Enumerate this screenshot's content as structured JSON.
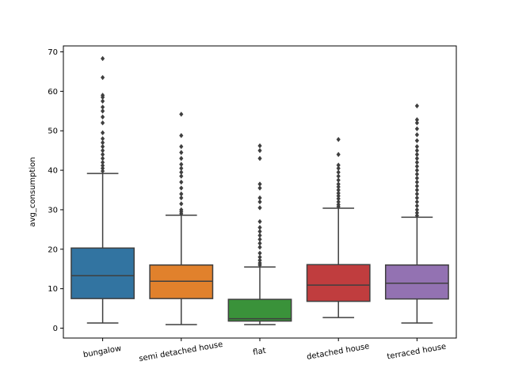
{
  "chart_data": {
    "type": "box",
    "title": "",
    "xlabel": "",
    "ylabel": "avg_consumption",
    "ylim": [
      -2.5,
      71.5
    ],
    "yticks": [
      0,
      10,
      20,
      30,
      40,
      50,
      60,
      70
    ],
    "grid": false,
    "categories": [
      "bungalow",
      "semi detached house",
      "flat",
      "detached house",
      "terraced house"
    ],
    "colors": [
      "#3274a1",
      "#e1812c",
      "#3a923a",
      "#c03d3e",
      "#9372b2"
    ],
    "boxes": [
      {
        "category": "bungalow",
        "whisker_low": 1.3,
        "q1": 7.5,
        "median": 13.3,
        "q3": 20.3,
        "whisker_high": 39.2,
        "outliers": [
          39.8,
          40.5,
          41.2,
          42.0,
          43.0,
          44.0,
          45.0,
          46.0,
          47.0,
          48.0,
          49.5,
          52.0,
          53.5,
          55.0,
          56.0,
          57.5,
          58.5,
          59.0,
          63.5,
          68.3
        ]
      },
      {
        "category": "semi detached house",
        "whisker_low": 0.9,
        "q1": 7.5,
        "median": 11.9,
        "q3": 16.0,
        "whisker_high": 28.6,
        "outliers": [
          29.0,
          29.5,
          30.0,
          31.5,
          33.0,
          34.0,
          35.5,
          37.0,
          38.5,
          39.5,
          40.5,
          41.5,
          43.0,
          44.5,
          46.0,
          48.8,
          54.2
        ]
      },
      {
        "category": "flat",
        "whisker_low": 0.9,
        "q1": 1.8,
        "median": 2.4,
        "q3": 7.3,
        "whisker_high": 15.5,
        "outliers": [
          16.0,
          16.5,
          17.2,
          18.0,
          19.0,
          20.5,
          21.5,
          22.5,
          23.5,
          24.5,
          25.5,
          27.0,
          30.5,
          32.0,
          33.0,
          35.5,
          36.5,
          43.0,
          45.0,
          46.2
        ]
      },
      {
        "category": "detached house",
        "whisker_low": 2.7,
        "q1": 6.8,
        "median": 10.9,
        "q3": 16.1,
        "whisker_high": 30.4,
        "outliers": [
          30.8,
          31.3,
          32.0,
          32.8,
          33.5,
          34.2,
          35.0,
          35.8,
          36.5,
          37.5,
          38.5,
          39.5,
          40.5,
          41.3,
          44.0,
          47.8
        ]
      },
      {
        "category": "terraced house",
        "whisker_low": 1.3,
        "q1": 7.4,
        "median": 11.4,
        "q3": 16.0,
        "whisker_high": 28.1,
        "outliers": [
          28.5,
          29.2,
          30.0,
          31.0,
          32.0,
          33.0,
          34.0,
          35.0,
          36.0,
          37.0,
          38.0,
          39.0,
          40.0,
          41.0,
          42.0,
          43.0,
          44.0,
          45.0,
          46.0,
          47.5,
          49.0,
          50.5,
          52.0,
          52.8,
          56.3
        ]
      }
    ]
  }
}
